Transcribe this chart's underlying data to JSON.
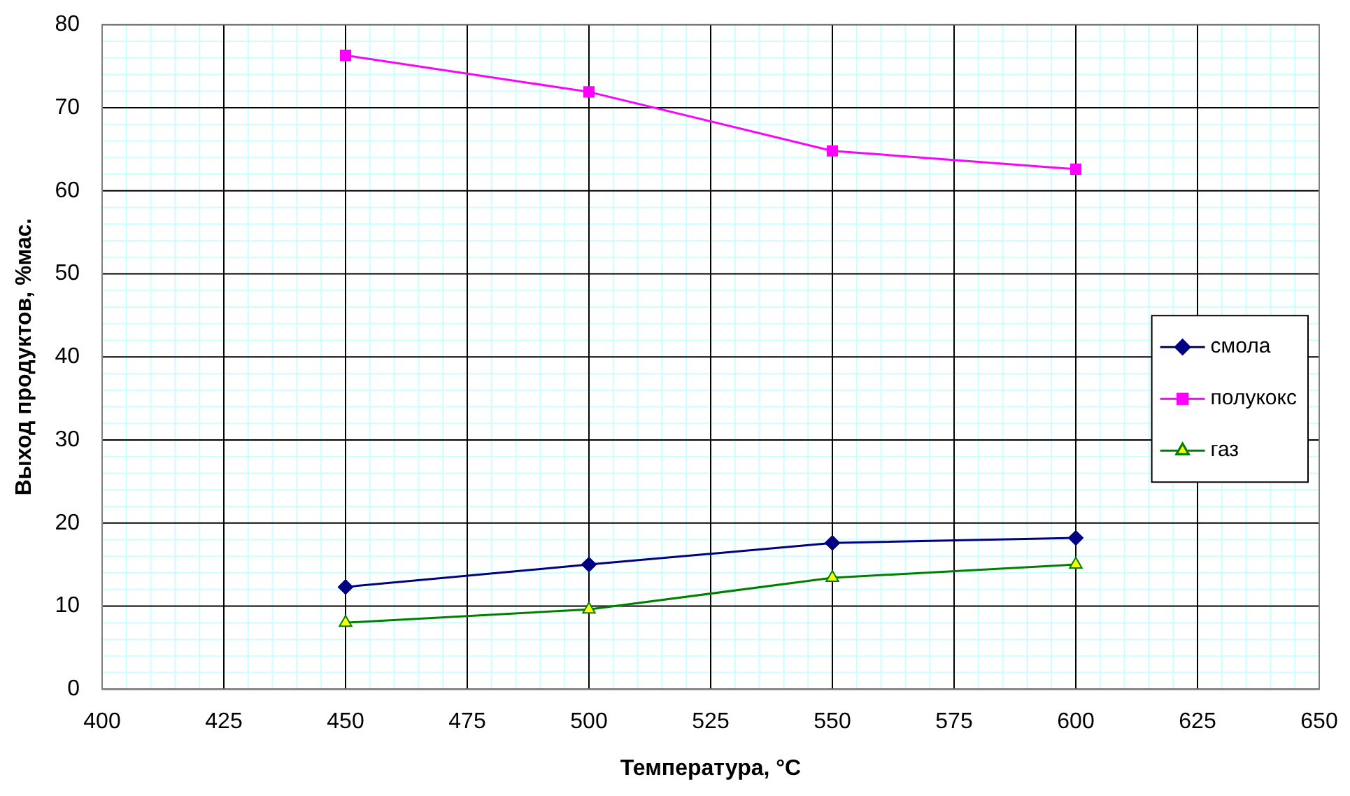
{
  "chart_data": {
    "type": "line",
    "xlabel": "Температура, °C",
    "ylabel": "Выход продуктов, %мас.",
    "x": [
      450,
      500,
      550,
      600
    ],
    "series": [
      {
        "name": "смола",
        "color": "#000080",
        "marker": "diamond",
        "values": [
          12.3,
          15.0,
          17.6,
          18.2
        ]
      },
      {
        "name": "полукокс",
        "color": "#ff00ff",
        "marker": "square",
        "values": [
          76.3,
          71.9,
          64.8,
          62.6
        ]
      },
      {
        "name": "газ",
        "color": "#008000",
        "marker": "triangle",
        "values": [
          8.0,
          9.6,
          13.4,
          15.0
        ]
      }
    ],
    "xlim": [
      400,
      650
    ],
    "xticks": [
      400,
      {
        "value": 405,
        "label": null
      },
      {
        "value": 410,
        "label": null
      },
      {
        "value": 415,
        "label": null
      },
      {
        "value": 420,
        "label": null
      },
      425,
      {
        "value": 430,
        "label": null
      },
      {
        "value": 435,
        "label": null
      },
      {
        "value": 440,
        "label": null
      },
      {
        "value": 445,
        "label": null
      },
      450,
      {
        "value": 455,
        "label": null
      },
      {
        "value": 460,
        "label": null
      },
      {
        "value": 465,
        "label": null
      },
      {
        "value": 470,
        "label": null
      },
      475,
      {
        "value": 480,
        "label": null
      },
      {
        "value": 485,
        "label": null
      },
      {
        "value": 490,
        "label": null
      },
      {
        "value": 495,
        "label": null
      },
      500,
      {
        "value": 505,
        "label": null
      },
      {
        "value": 510,
        "label": null
      },
      {
        "value": 515,
        "label": null
      },
      {
        "value": 520,
        "label": null
      },
      525,
      {
        "value": 530,
        "label": null
      },
      {
        "value": 535,
        "label": null
      },
      {
        "value": 540,
        "label": null
      },
      {
        "value": 545,
        "label": null
      },
      550,
      {
        "value": 555,
        "label": null
      },
      {
        "value": 560,
        "label": null
      },
      {
        "value": 565,
        "label": null
      },
      {
        "value": 570,
        "label": null
      },
      575,
      {
        "value": 580,
        "label": null
      },
      {
        "value": 585,
        "label": null
      },
      {
        "value": 590,
        "label": null
      },
      {
        "value": 595,
        "label": null
      },
      600,
      {
        "value": 605,
        "label": null
      },
      {
        "value": 610,
        "label": null
      },
      {
        "value": 615,
        "label": null
      },
      {
        "value": 620,
        "label": null
      },
      625,
      {
        "value": 630,
        "label": null
      },
      {
        "value": 635,
        "label": null
      },
      {
        "value": 640,
        "label": null
      },
      {
        "value": 645,
        "label": null
      },
      650
    ],
    "ylim": [
      0,
      80
    ],
    "yticks": [
      0,
      {
        "value": 2,
        "label": null
      },
      {
        "value": 4,
        "label": null
      },
      {
        "value": 6,
        "label": null
      },
      {
        "value": 8,
        "label": null
      },
      10,
      {
        "value": 12,
        "label": null
      },
      {
        "value": 14,
        "label": null
      },
      {
        "value": 16,
        "label": null
      },
      {
        "value": 18,
        "label": null
      },
      20,
      {
        "value": 22,
        "label": null
      },
      {
        "value": 24,
        "label": null
      },
      {
        "value": 26,
        "label": null
      },
      {
        "value": 28,
        "label": null
      },
      30,
      {
        "value": 32,
        "label": null
      },
      {
        "value": 34,
        "label": null
      },
      {
        "value": 36,
        "label": null
      },
      {
        "value": 38,
        "label": null
      },
      40,
      {
        "value": 42,
        "label": null
      },
      {
        "value": 44,
        "label": null
      },
      {
        "value": 46,
        "label": null
      },
      {
        "value": 48,
        "label": null
      },
      50,
      {
        "value": 52,
        "label": null
      },
      {
        "value": 54,
        "label": null
      },
      {
        "value": 56,
        "label": null
      },
      {
        "value": 58,
        "label": null
      },
      60,
      {
        "value": 62,
        "label": null
      },
      {
        "value": 64,
        "label": null
      },
      {
        "value": 66,
        "label": null
      },
      {
        "value": 68,
        "label": null
      },
      70,
      {
        "value": 72,
        "label": null
      },
      {
        "value": 74,
        "label": null
      },
      {
        "value": 76,
        "label": null
      },
      {
        "value": 78,
        "label": null
      },
      80
    ],
    "grid": true,
    "legend": "right"
  }
}
